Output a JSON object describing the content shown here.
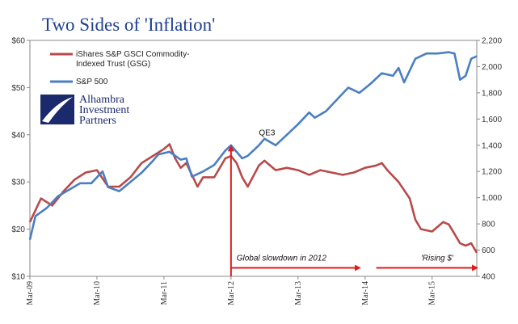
{
  "chart_data": {
    "type": "line",
    "title": "Two Sides of 'Inflation'",
    "x_tick_labels": [
      "Mar-09",
      "Mar-10",
      "Mar-11",
      "Mar-12",
      "Mar-13",
      "Mar-14",
      "Mar-15"
    ],
    "x_range": [
      "2009-03",
      "2015-11"
    ],
    "y_left": {
      "ylim": [
        10,
        60
      ],
      "tick_labels": [
        "$10",
        "$20",
        "$30",
        "$40",
        "$50",
        "$60"
      ],
      "tick_values": [
        10,
        20,
        30,
        40,
        50,
        60
      ]
    },
    "y_right": {
      "ylim": [
        400,
        2200
      ],
      "tick_labels": [
        "400",
        "600",
        "800",
        "1,000",
        "1,200",
        "1,400",
        "1,600",
        "1,800",
        "2,000",
        "2,200"
      ],
      "tick_values": [
        400,
        600,
        800,
        1000,
        1200,
        1400,
        1600,
        1800,
        2000,
        2200
      ]
    },
    "grid": false,
    "legend_position": "top-left",
    "series": [
      {
        "name": "iShares S&P GSCI Commodity-Indexed Trust (GSG)",
        "axis": "left",
        "color": "#b84a4a",
        "points": [
          [
            "2009-03",
            21.5
          ],
          [
            "2009-05",
            26.5
          ],
          [
            "2009-07",
            25
          ],
          [
            "2009-09",
            28
          ],
          [
            "2009-11",
            30.5
          ],
          [
            "2010-01",
            32
          ],
          [
            "2010-03",
            32.5
          ],
          [
            "2010-05",
            29
          ],
          [
            "2010-07",
            29
          ],
          [
            "2010-09",
            31
          ],
          [
            "2010-11",
            34
          ],
          [
            "2011-01",
            35.5
          ],
          [
            "2011-03",
            37
          ],
          [
            "2011-04",
            38
          ],
          [
            "2011-05",
            35
          ],
          [
            "2011-06",
            33
          ],
          [
            "2011-07",
            34
          ],
          [
            "2011-09",
            29
          ],
          [
            "2011-10",
            31
          ],
          [
            "2011-12",
            31
          ],
          [
            "2012-02",
            35
          ],
          [
            "2012-03",
            35.5
          ],
          [
            "2012-04",
            34
          ],
          [
            "2012-05",
            31
          ],
          [
            "2012-06",
            29
          ],
          [
            "2012-08",
            33.5
          ],
          [
            "2012-09",
            34.5
          ],
          [
            "2012-11",
            32.5
          ],
          [
            "2013-01",
            33
          ],
          [
            "2013-03",
            32.5
          ],
          [
            "2013-05",
            31.5
          ],
          [
            "2013-07",
            32.5
          ],
          [
            "2013-09",
            32
          ],
          [
            "2013-11",
            31.5
          ],
          [
            "2014-01",
            32
          ],
          [
            "2014-03",
            33
          ],
          [
            "2014-05",
            33.5
          ],
          [
            "2014-06",
            34
          ],
          [
            "2014-07",
            32.5
          ],
          [
            "2014-09",
            30
          ],
          [
            "2014-11",
            26.5
          ],
          [
            "2014-12",
            22
          ],
          [
            "2015-01",
            20
          ],
          [
            "2015-03",
            19.5
          ],
          [
            "2015-05",
            21.5
          ],
          [
            "2015-06",
            21
          ],
          [
            "2015-07",
            19
          ],
          [
            "2015-08",
            17
          ],
          [
            "2015-09",
            16.5
          ],
          [
            "2015-10",
            17
          ],
          [
            "2015-11",
            15
          ]
        ]
      },
      {
        "name": "S&P 500",
        "axis": "right",
        "color": "#4a7fc0",
        "points": [
          [
            "2009-03",
            680
          ],
          [
            "2009-04",
            860
          ],
          [
            "2009-06",
            920
          ],
          [
            "2009-08",
            1010
          ],
          [
            "2009-10",
            1060
          ],
          [
            "2009-12",
            1110
          ],
          [
            "2010-02",
            1110
          ],
          [
            "2010-04",
            1200
          ],
          [
            "2010-05",
            1080
          ],
          [
            "2010-07",
            1050
          ],
          [
            "2010-09",
            1120
          ],
          [
            "2010-11",
            1190
          ],
          [
            "2011-01",
            1280
          ],
          [
            "2011-02",
            1330
          ],
          [
            "2011-04",
            1350
          ],
          [
            "2011-06",
            1290
          ],
          [
            "2011-07",
            1300
          ],
          [
            "2011-08",
            1160
          ],
          [
            "2011-10",
            1200
          ],
          [
            "2011-12",
            1250
          ],
          [
            "2012-02",
            1360
          ],
          [
            "2012-03",
            1400
          ],
          [
            "2012-05",
            1300
          ],
          [
            "2012-06",
            1320
          ],
          [
            "2012-08",
            1400
          ],
          [
            "2012-09",
            1450
          ],
          [
            "2012-11",
            1400
          ],
          [
            "2013-01",
            1480
          ],
          [
            "2013-03",
            1560
          ],
          [
            "2013-05",
            1650
          ],
          [
            "2013-06",
            1610
          ],
          [
            "2013-08",
            1660
          ],
          [
            "2013-10",
            1750
          ],
          [
            "2013-12",
            1840
          ],
          [
            "2014-02",
            1800
          ],
          [
            "2014-04",
            1870
          ],
          [
            "2014-06",
            1950
          ],
          [
            "2014-08",
            1930
          ],
          [
            "2014-09",
            1990
          ],
          [
            "2014-10",
            1880
          ],
          [
            "2014-12",
            2060
          ],
          [
            "2015-02",
            2100
          ],
          [
            "2015-04",
            2100
          ],
          [
            "2015-06",
            2110
          ],
          [
            "2015-07",
            2100
          ],
          [
            "2015-08",
            1900
          ],
          [
            "2015-09",
            1930
          ],
          [
            "2015-10",
            2060
          ],
          [
            "2015-11",
            2080
          ]
        ]
      }
    ],
    "annotations": [
      {
        "text": "QE3",
        "date": "2012-08",
        "value": 1475,
        "axis": "right"
      },
      {
        "text": "Global slowdown in 2012",
        "date": "2012-04",
        "value": 13.3,
        "axis": "left",
        "italic": true
      },
      {
        "text": "'Rising $'",
        "date": "2015-01",
        "value": 13.3,
        "axis": "left",
        "italic": true
      }
    ],
    "arrows": {
      "vertical_at": "2012-03",
      "vertical_from": 10,
      "vertical_to": 37.5,
      "horizontal_1": {
        "from": "2012-03",
        "to": "2014-02",
        "value": 11.8
      },
      "horizontal_2": {
        "from": "2014-05",
        "to": "2015-11",
        "value": 11.8
      },
      "color": "#e01b1b"
    }
  },
  "logo": {
    "line1": "Alhambra",
    "line2": "Investment",
    "line3": "Partners"
  },
  "colors": {
    "title": "#1f3f8f",
    "arrow": "#e01b1b",
    "gsg": "#b84a4a",
    "spx": "#4a7fc0"
  }
}
